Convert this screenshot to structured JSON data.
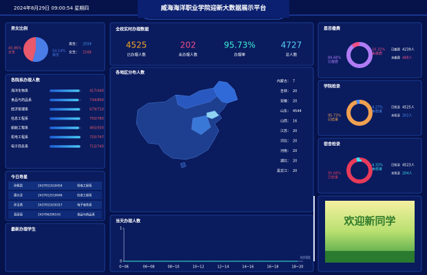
{
  "header": {
    "datetime": "2024年8月29日 09:00:54 星期四",
    "title": "威海海洋职业学院迎新大数据展示平台"
  },
  "gender": {
    "title": "男女比例",
    "slices": [
      {
        "name": "女生",
        "value": 45.86,
        "label": "45.86%",
        "color": "#e8596b"
      },
      {
        "name": "男生",
        "value": 54.14,
        "label": "54.14%",
        "color": "#4a7de8"
      }
    ],
    "legend": [
      {
        "label": "男生：",
        "count": 2559,
        "color": "#4a9df0"
      },
      {
        "label": "女生：",
        "count": 2168,
        "color": "#e8596b"
      }
    ]
  },
  "departments": {
    "title": "各院系办理人数",
    "rows": [
      {
        "name": "海洋生物系",
        "done": 417,
        "total": 440,
        "label": "417/440"
      },
      {
        "name": "食品与药品系",
        "done": 734,
        "total": 800,
        "label": "734/800"
      },
      {
        "name": "经济管理系",
        "done": 679,
        "total": 710,
        "label": "679/710"
      },
      {
        "name": "信息工程系",
        "done": 750,
        "total": 780,
        "label": "750/780"
      },
      {
        "name": "船舶工程系",
        "done": 465,
        "total": 500,
        "label": "465/500"
      },
      {
        "name": "机电工程系",
        "done": 725,
        "total": 747,
        "label": "725/747"
      },
      {
        "name": "电子商务系",
        "done": 715,
        "total": 740,
        "label": "715/740"
      }
    ]
  },
  "birthdays": {
    "title": "今日寿星",
    "rows": [
      [
        "孙佩凯",
        "2437011610454",
        "机电工程系"
      ],
      [
        "唐元泽",
        "2437012510046",
        "信息工程系"
      ],
      [
        "孙玉茜",
        "2437011610317",
        "电子商务系"
      ],
      [
        "袁丽丽",
        "243706290143",
        "食品与药品系"
      ]
    ]
  },
  "latest": {
    "title": "最新办理学生"
  },
  "stats": {
    "title": "全校实时办理数据",
    "items": [
      {
        "value": 4525,
        "label": "已办理人数",
        "color": "#f5a623"
      },
      {
        "value": 202,
        "label": "未办理人数",
        "color": "#f0508a"
      },
      {
        "value": "95.73%",
        "label": "办理率",
        "color": "#3ef0d8"
      },
      {
        "value": 4727,
        "label": "总人数",
        "color": "#5ad0f5"
      }
    ]
  },
  "regions": {
    "title": "各地区分布人数",
    "items": [
      {
        "name": "内蒙古：",
        "value": 7
      },
      {
        "name": "吉林：",
        "value": 20
      },
      {
        "name": "安徽：",
        "value": 20
      },
      {
        "name": "山东：",
        "value": 4544
      },
      {
        "name": "山西：",
        "value": 16
      },
      {
        "name": "江苏：",
        "value": 20
      },
      {
        "name": "河北：",
        "value": 20
      },
      {
        "name": "河南：",
        "value": 20
      },
      {
        "name": "湖北：",
        "value": 20
      },
      {
        "name": "黑龙江：",
        "value": 20
      }
    ]
  },
  "daily": {
    "title": "当天办理人数",
    "type": "line",
    "categories": [
      "0~06",
      "06~08",
      "08~10",
      "10~12",
      "12~14",
      "14~16",
      "16~18",
      "18~20"
    ],
    "values": [
      0,
      0,
      0,
      0,
      0,
      0,
      0,
      0
    ],
    "ylim": [
      0,
      1
    ],
    "yticks": [
      0,
      1
    ],
    "x_label": "时间段",
    "color": "#3ef0d8"
  },
  "donuts": [
    {
      "title": "是否缴费",
      "segments": [
        {
          "name": "已缴费",
          "value": 89.68,
          "label": "89.68%",
          "color": "#b07cf5"
        },
        {
          "name": "未缴费",
          "value": 10.32,
          "label": "10.32%",
          "color": "#f0508a"
        }
      ],
      "counts": [
        {
          "name": "已缴费",
          "count": "4239人"
        },
        {
          "name": "未缴费",
          "count": "488人"
        }
      ]
    },
    {
      "title": "学院检录",
      "segments": [
        {
          "name": "已检录",
          "value": 95.73,
          "label": "95.73%",
          "color": "#f0a050"
        },
        {
          "name": "未检录",
          "value": 4.27,
          "label": "4.27%",
          "color": "#4a8df0"
        }
      ],
      "counts": [
        {
          "name": "已检录",
          "count": "4525人"
        },
        {
          "name": "未检录",
          "count": "202人"
        }
      ]
    },
    {
      "title": "宿舍检录",
      "segments": [
        {
          "name": "已检录",
          "value": 95.68,
          "label": "95.68%",
          "color": "#e83a5a"
        },
        {
          "name": "未检录",
          "value": 4.32,
          "label": "4.32%",
          "color": "#3ee0f0"
        }
      ],
      "counts": [
        {
          "name": "已检录",
          "count": "4523人"
        },
        {
          "name": "未检录",
          "count": "204人"
        }
      ]
    }
  ],
  "banner": {
    "title": "欢迎新同学"
  }
}
